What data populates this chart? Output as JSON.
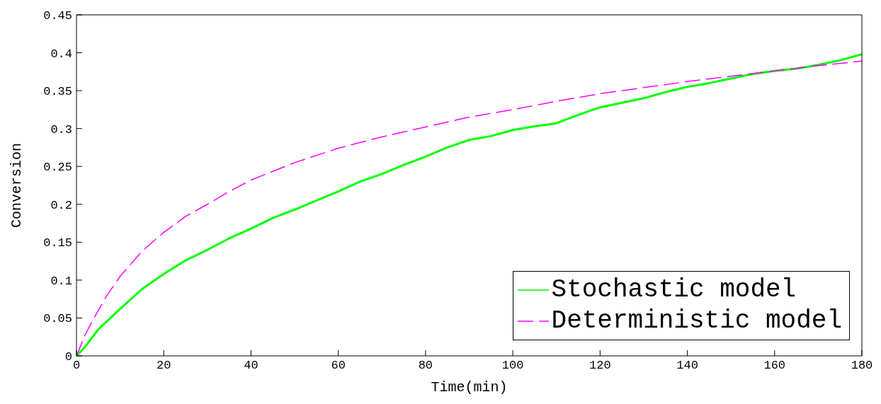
{
  "chart_data": {
    "type": "line",
    "xlabel": "Time(min)",
    "ylabel": "Conversion",
    "xlim": [
      0,
      180
    ],
    "xticks": [
      0,
      20,
      40,
      60,
      80,
      100,
      120,
      140,
      160,
      180
    ],
    "ylim": [
      0,
      0.45
    ],
    "yticks": [
      0,
      0.05,
      0.1,
      0.15,
      0.2,
      0.25,
      0.3,
      0.35,
      0.4,
      0.45
    ],
    "grid": false,
    "legend": "bottom right",
    "marker": "none",
    "series": [
      {
        "name": "Stochastic model",
        "color": "#00ff00",
        "line_style": "solid",
        "x": [
          0,
          2,
          5,
          10,
          15,
          20,
          25,
          30,
          35,
          40,
          45,
          50,
          55,
          60,
          65,
          70,
          75,
          80,
          85,
          90,
          95,
          100,
          105,
          110,
          115,
          120,
          125,
          130,
          135,
          140,
          145,
          150,
          155,
          160,
          165,
          170,
          175,
          180
        ],
        "values": [
          0,
          0.012,
          0.035,
          0.062,
          0.088,
          0.108,
          0.126,
          0.14,
          0.155,
          0.168,
          0.182,
          0.193,
          0.205,
          0.217,
          0.23,
          0.24,
          0.252,
          0.263,
          0.275,
          0.285,
          0.29,
          0.298,
          0.303,
          0.307,
          0.318,
          0.328,
          0.334,
          0.34,
          0.348,
          0.355,
          0.36,
          0.366,
          0.372,
          0.376,
          0.379,
          0.384,
          0.39,
          0.398
        ]
      },
      {
        "name": "Deterministic model",
        "color": "#ff00ff",
        "line_style": "dashed",
        "x": [
          0,
          2,
          4,
          7,
          10,
          15,
          20,
          25,
          30,
          35,
          40,
          50,
          60,
          70,
          80,
          90,
          100,
          110,
          120,
          130,
          140,
          150,
          160,
          170,
          180
        ],
        "values": [
          0,
          0.028,
          0.05,
          0.08,
          0.105,
          0.138,
          0.163,
          0.184,
          0.2,
          0.217,
          0.232,
          0.255,
          0.274,
          0.289,
          0.302,
          0.315,
          0.325,
          0.336,
          0.346,
          0.354,
          0.362,
          0.369,
          0.376,
          0.383,
          0.389
        ]
      }
    ]
  }
}
